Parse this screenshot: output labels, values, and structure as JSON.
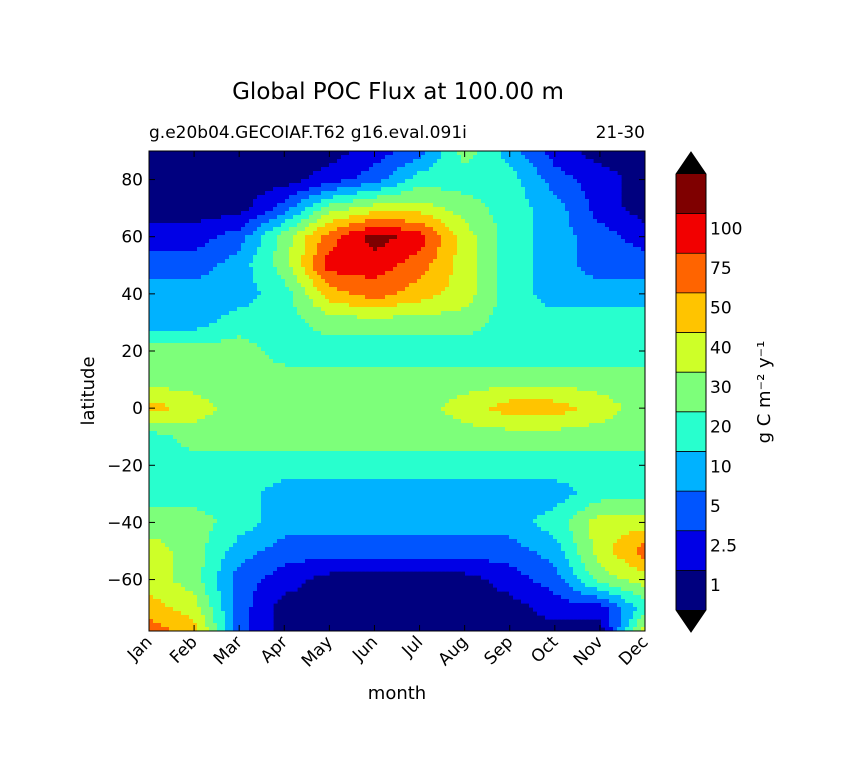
{
  "chart_data": {
    "type": "filled-contour",
    "title": "Global POC Flux at 100.00 m",
    "subtitle_left": "g.e20b04.GECOIAF.T62 g16.eval.091i",
    "subtitle_right": "21-30",
    "xlabel": "month",
    "ylabel": "latitude",
    "colorbar_label": "g C m⁻² y⁻¹",
    "x_ticklabels": [
      "Jan",
      "Feb",
      "Mar",
      "Apr",
      "May",
      "Jun",
      "Jul",
      "Aug",
      "Sep",
      "Oct",
      "Nov",
      "Dec"
    ],
    "y_ticks": [
      80,
      60,
      40,
      20,
      0,
      -20,
      -40,
      -60
    ],
    "y_ticklabels": [
      "80",
      "60",
      "40",
      "20",
      "0",
      "−20",
      "−40",
      "−60"
    ],
    "ylim": [
      -78,
      90
    ],
    "levels": [
      "1",
      "2.5",
      "5",
      "10",
      "20",
      "30",
      "40",
      "50",
      "75",
      "100"
    ],
    "colors": [
      "#00007f",
      "#0000e6",
      "#0055ff",
      "#00b2ff",
      "#28ffce",
      "#7dff7a",
      "#ceff28",
      "#ffc400",
      "#ff6400",
      "#f20000",
      "#7f0000"
    ],
    "extend": "both",
    "rows": [
      {
        "lat": 90,
        "v": [
          0,
          0,
          0,
          0,
          0,
          1,
          2,
          5,
          3,
          1,
          0,
          0
        ]
      },
      {
        "lat": 80,
        "v": [
          0,
          0,
          0,
          0,
          1,
          2,
          4,
          4,
          4,
          2,
          1,
          0
        ]
      },
      {
        "lat": 70,
        "v": [
          0,
          0,
          0,
          2,
          5,
          6,
          6,
          5,
          4,
          3,
          1,
          0
        ]
      },
      {
        "lat": 60,
        "v": [
          1,
          1,
          2,
          5,
          8,
          10,
          9,
          6,
          4,
          3,
          2,
          1
        ]
      },
      {
        "lat": 50,
        "v": [
          2,
          2,
          3,
          5,
          9,
          9,
          8,
          6,
          4,
          3,
          2,
          2
        ]
      },
      {
        "lat": 40,
        "v": [
          3,
          3,
          3,
          4,
          7,
          8,
          7,
          6,
          4,
          3,
          3,
          3
        ]
      },
      {
        "lat": 30,
        "v": [
          3,
          3,
          4,
          4,
          5,
          5,
          5,
          5,
          4,
          4,
          4,
          4
        ]
      },
      {
        "lat": 20,
        "v": [
          5,
          5,
          5,
          4,
          4,
          4,
          4,
          4,
          4,
          4,
          4,
          4
        ]
      },
      {
        "lat": 10,
        "v": [
          5,
          5,
          5,
          5,
          5,
          5,
          5,
          5,
          5,
          5,
          5,
          5
        ]
      },
      {
        "lat": 0,
        "v": [
          7,
          6,
          5,
          5,
          5,
          5,
          5,
          6,
          7,
          7,
          6,
          5
        ]
      },
      {
        "lat": -10,
        "v": [
          4,
          5,
          5,
          5,
          5,
          5,
          5,
          5,
          5,
          5,
          5,
          5
        ]
      },
      {
        "lat": -20,
        "v": [
          4,
          4,
          4,
          4,
          4,
          4,
          4,
          4,
          4,
          4,
          4,
          4
        ]
      },
      {
        "lat": -30,
        "v": [
          4,
          4,
          4,
          3,
          3,
          3,
          3,
          3,
          3,
          3,
          4,
          4
        ]
      },
      {
        "lat": -40,
        "v": [
          5,
          5,
          4,
          3,
          3,
          3,
          3,
          3,
          3,
          4,
          6,
          6
        ]
      },
      {
        "lat": -50,
        "v": [
          6,
          5,
          3,
          2,
          2,
          2,
          2,
          2,
          2,
          3,
          6,
          8
        ]
      },
      {
        "lat": -60,
        "v": [
          6,
          5,
          2,
          1,
          0,
          0,
          0,
          0,
          1,
          2,
          5,
          6
        ]
      },
      {
        "lat": -70,
        "v": [
          7,
          6,
          2,
          0,
          0,
          0,
          0,
          0,
          0,
          1,
          1,
          4
        ]
      },
      {
        "lat": -78,
        "v": [
          8,
          7,
          2,
          0,
          0,
          0,
          0,
          0,
          0,
          0,
          0,
          6
        ]
      }
    ]
  }
}
